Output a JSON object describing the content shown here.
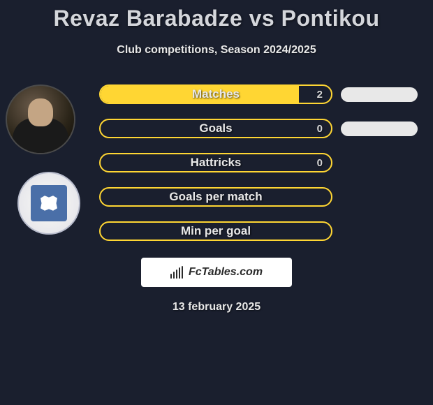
{
  "title": "Revaz Barabadze vs Pontikou",
  "subtitle": "Club competitions, Season 2024/2025",
  "stats": [
    {
      "label": "Matches",
      "value": "2",
      "fill_pct": 86,
      "has_right_pill": true
    },
    {
      "label": "Goals",
      "value": "0",
      "fill_pct": 0,
      "has_right_pill": true
    },
    {
      "label": "Hattricks",
      "value": "0",
      "fill_pct": 0,
      "has_right_pill": false
    },
    {
      "label": "Goals per match",
      "value": "",
      "fill_pct": 0,
      "has_right_pill": false
    },
    {
      "label": "Min per goal",
      "value": "",
      "fill_pct": 0,
      "has_right_pill": false
    }
  ],
  "colors": {
    "background": "#1a1f2e",
    "accent": "#ffd633",
    "pill_right": "#e8e8e8",
    "text": "#e8e8e8",
    "title_text": "#d4d6db"
  },
  "footer": {
    "brand": "FcTables.com",
    "date": "13 february 2025"
  }
}
